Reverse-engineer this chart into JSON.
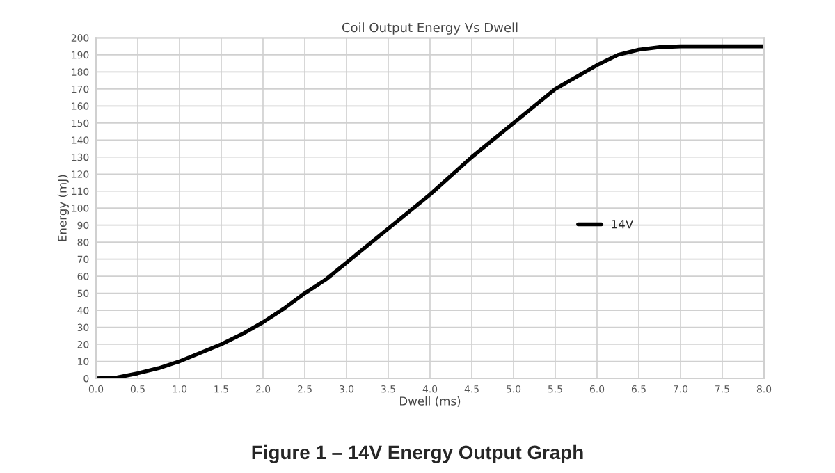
{
  "chart_data": {
    "type": "line",
    "title": "Coil Output Energy Vs Dwell",
    "xlabel": "Dwell (ms)",
    "ylabel": "Energy (mJ)",
    "annotations": [
      "Figure 1 – 14V Energy Output Graph"
    ],
    "xlim": [
      0,
      8
    ],
    "xticks": [
      {
        "value": 0,
        "label": "0.0"
      },
      {
        "value": 0.5,
        "label": "0.5"
      },
      {
        "value": 1,
        "label": "1.0"
      },
      {
        "value": 1.5,
        "label": "1.5"
      },
      {
        "value": 2,
        "label": "2.0"
      },
      {
        "value": 2.5,
        "label": "2.5"
      },
      {
        "value": 3,
        "label": "3.0"
      },
      {
        "value": 3.5,
        "label": "3.5"
      },
      {
        "value": 4,
        "label": "4.0"
      },
      {
        "value": 4.5,
        "label": "4.5"
      },
      {
        "value": 5,
        "label": "5.0"
      },
      {
        "value": 5.5,
        "label": "5.5"
      },
      {
        "value": 6,
        "label": "6.0"
      },
      {
        "value": 6.5,
        "label": "6.5"
      },
      {
        "value": 7,
        "label": "7.0"
      },
      {
        "value": 7.5,
        "label": "7.5"
      },
      {
        "value": 8,
        "label": "8.0"
      }
    ],
    "ylim": [
      0,
      200
    ],
    "yticks": [
      0,
      10,
      20,
      30,
      40,
      50,
      60,
      70,
      80,
      90,
      100,
      110,
      120,
      130,
      140,
      150,
      160,
      170,
      180,
      190,
      200
    ],
    "grid": true,
    "legend": "right",
    "marker": "none",
    "line_style": "solid",
    "series": [
      {
        "name": "14V",
        "color": "#000000",
        "x": [
          0,
          0.25,
          0.5,
          0.75,
          1.0,
          1.25,
          1.5,
          1.75,
          2.0,
          2.25,
          2.5,
          2.75,
          3.0,
          3.5,
          4.0,
          4.5,
          5.0,
          5.5,
          6.0,
          6.25,
          6.5,
          6.75,
          7.0,
          7.5,
          8.0
        ],
        "values": [
          0,
          0.5,
          3,
          6,
          10,
          15,
          20,
          26,
          33,
          41,
          50,
          58,
          68,
          88,
          108,
          130,
          150,
          170,
          184,
          190,
          193,
          194.5,
          195,
          195,
          195
        ]
      }
    ]
  }
}
